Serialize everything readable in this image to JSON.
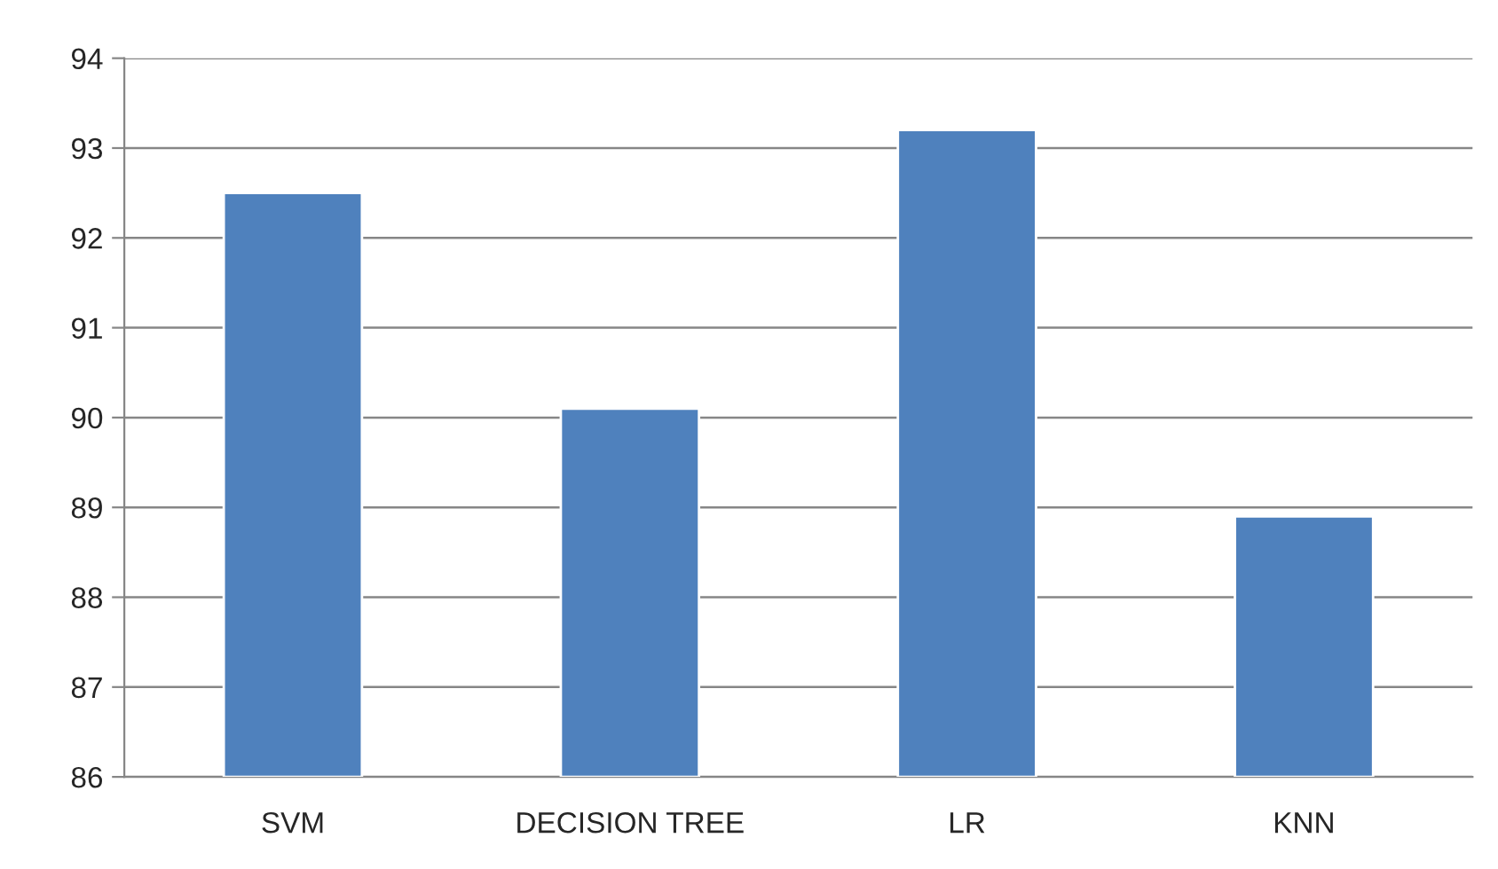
{
  "chart_data": {
    "type": "bar",
    "categories": [
      "SVM",
      "DECISION TREE",
      "LR",
      "KNN"
    ],
    "series": [
      {
        "color": "#4f81bd",
        "values": [
          92.5,
          90.1,
          93.2,
          88.9
        ]
      }
    ],
    "ylim": [
      86,
      94
    ],
    "yticks": [
      86,
      87,
      88,
      89,
      90,
      91,
      92,
      93,
      94
    ],
    "grid": "y",
    "legend": false
  }
}
